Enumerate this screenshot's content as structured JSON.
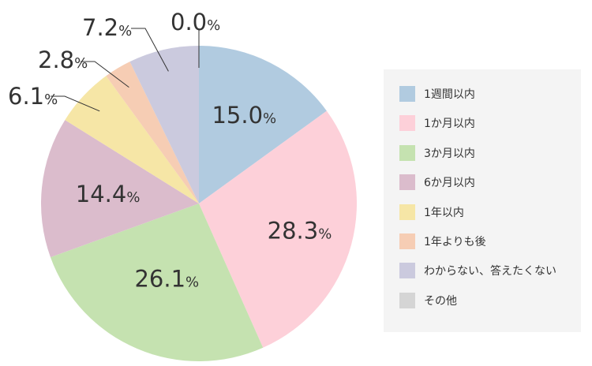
{
  "chart_data": {
    "type": "pie",
    "categories": [
      "1週間以内",
      "1か月以内",
      "3か月以内",
      "6か月以内",
      "1年以内",
      "1年よりも後",
      "わからない、答えたくない",
      "その他"
    ],
    "values": [
      15.0,
      28.3,
      26.1,
      14.4,
      6.1,
      2.8,
      7.2,
      0.0
    ],
    "value_labels": [
      "15.0",
      "28.3",
      "26.1",
      "14.4",
      "6.1",
      "2.8",
      "7.2",
      "0.0"
    ],
    "unit": "%",
    "colors": [
      "#b1cbe0",
      "#fdd0d9",
      "#c5e2b0",
      "#dbbccc",
      "#f6e6a6",
      "#f6cdb4",
      "#cbcade",
      "#d5d5d5"
    ],
    "start_angle": "12 o'clock, clockwise",
    "legend_position": "right"
  }
}
